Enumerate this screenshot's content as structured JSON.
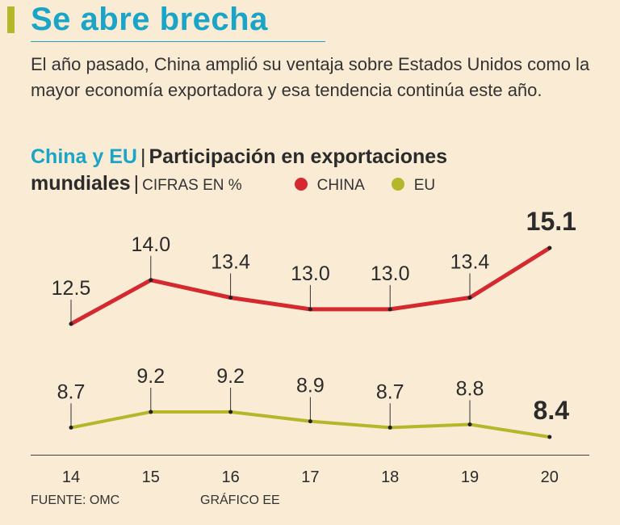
{
  "header": {
    "title": "Se abre brecha",
    "subtitle": "El año pasado, China amplió su ventaja sobre Estados Unidos como la mayor economía exportadora y esa tendencia continúa este año."
  },
  "chart_header": {
    "lead": "China y EU",
    "separator": "|",
    "topic_line1": "Participación en exportaciones",
    "topic_line2": "mundiales",
    "units": "CIFRAS EN %"
  },
  "legend": [
    {
      "name": "CHINA",
      "color": "#d42a2f"
    },
    {
      "name": "EU",
      "color": "#b5b62a"
    }
  ],
  "chart_data": {
    "type": "line",
    "title": "China y EU | Participación en exportaciones mundiales",
    "ylabel": "CIFRAS EN %",
    "categories": [
      "14",
      "15",
      "16",
      "17",
      "18",
      "19",
      "20"
    ],
    "series": [
      {
        "name": "CHINA",
        "color": "#d42a2f",
        "values": [
          12.5,
          14.0,
          13.4,
          13.0,
          13.0,
          13.4,
          15.1
        ],
        "labels": [
          "12.5",
          "14.0",
          "13.4",
          "13.0",
          "13.0",
          "13.4",
          "15.1"
        ]
      },
      {
        "name": "EU",
        "color": "#b5b62a",
        "values": [
          8.7,
          9.2,
          9.2,
          8.9,
          8.7,
          8.8,
          8.4
        ],
        "labels": [
          "8.7",
          "9.2",
          "9.2",
          "8.9",
          "8.7",
          "8.8",
          "8.4"
        ]
      }
    ]
  },
  "footer": {
    "source": "FUENTE: OMC",
    "credit": "GRÁFICO EE"
  }
}
